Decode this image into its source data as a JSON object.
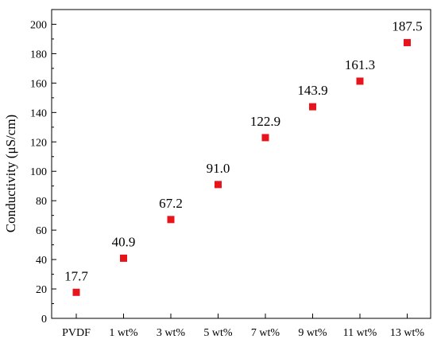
{
  "chart_data": {
    "type": "scatter",
    "categories": [
      "PVDF",
      "1 wt%",
      "3 wt%",
      "5 wt%",
      "7 wt%",
      "9 wt%",
      "11 wt%",
      "13 wt%"
    ],
    "values": [
      17.7,
      40.9,
      67.2,
      91.0,
      122.9,
      143.9,
      161.3,
      187.5
    ],
    "data_labels": [
      "17.7",
      "40.9",
      "67.2",
      "91.0",
      "122.9",
      "143.9",
      "161.3",
      "187.5"
    ],
    "title": "",
    "xlabel": "",
    "ylabel": "Conductivity (μS/cm)",
    "ylim": [
      0,
      210
    ],
    "yticks": [
      0,
      20,
      40,
      60,
      80,
      100,
      120,
      140,
      160,
      180,
      200
    ],
    "ytick_labels": [
      "0",
      "20",
      "40",
      "60",
      "80",
      "100",
      "120",
      "140",
      "160",
      "180",
      "200"
    ],
    "grid": false,
    "legend": "none",
    "marker": "square",
    "marker_color": "#e8141c"
  }
}
